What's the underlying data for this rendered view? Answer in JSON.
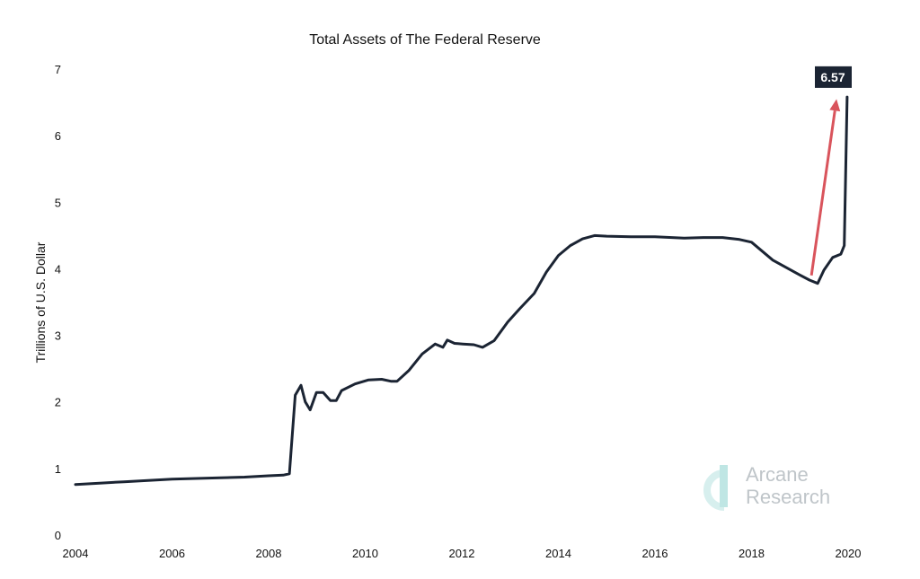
{
  "chart_data": {
    "type": "line",
    "title": "Total Assets of The Federal Reserve",
    "xlabel": "",
    "ylabel": "Trillions of U.S. Dollar",
    "xlim": [
      2004,
      2020
    ],
    "ylim": [
      0,
      7
    ],
    "x_ticks": [
      "2004",
      "2006",
      "2008",
      "2010",
      "2012",
      "2014",
      "2016",
      "2018",
      "2020"
    ],
    "y_ticks": [
      "0",
      "1",
      "2",
      "3",
      "4",
      "5",
      "6",
      "7"
    ],
    "grid": false,
    "line_color": "#1b2433",
    "series": [
      {
        "x": [
          2004,
          2004.5,
          2005,
          2005.5,
          2006,
          2006.5,
          2007,
          2007.5,
          2008,
          2008.3,
          2008.43,
          2008.55,
          2008.67,
          2008.76,
          2008.86,
          2008.99,
          2009.13,
          2009.28,
          2009.4,
          2009.51,
          2009.79,
          2010.07,
          2010.34,
          2010.53,
          2010.66,
          2010.9,
          2011.18,
          2011.45,
          2011.61,
          2011.7,
          2011.85,
          2012.02,
          2012.25,
          2012.43,
          2012.67,
          2012.95,
          2013.2,
          2013.5,
          2013.75,
          2014,
          2014.25,
          2014.5,
          2014.75,
          2015,
          2015.5,
          2016,
          2016.6,
          2017,
          2017.4,
          2017.75,
          2018,
          2018.44,
          2018.94,
          2019.2,
          2019.37,
          2019.5,
          2019.68,
          2019.85,
          2019.92,
          2019.98
        ],
        "y": [
          0.76,
          0.78,
          0.8,
          0.82,
          0.84,
          0.85,
          0.86,
          0.87,
          0.89,
          0.9,
          0.92,
          2.1,
          2.25,
          2.0,
          1.88,
          2.14,
          2.14,
          2.02,
          2.02,
          2.17,
          2.27,
          2.33,
          2.34,
          2.31,
          2.31,
          2.47,
          2.72,
          2.87,
          2.82,
          2.93,
          2.88,
          2.87,
          2.86,
          2.82,
          2.92,
          3.2,
          3.4,
          3.63,
          3.95,
          4.2,
          4.35,
          4.45,
          4.5,
          4.49,
          4.48,
          4.48,
          4.46,
          4.47,
          4.47,
          4.44,
          4.4,
          4.13,
          3.93,
          3.83,
          3.78,
          3.98,
          4.17,
          4.22,
          4.35,
          6.58
        ]
      }
    ],
    "annotations": [
      {
        "type": "label",
        "text": "6.57",
        "x": 2020,
        "y": 6.57,
        "background": "#1b2433"
      },
      {
        "type": "arrow",
        "from": [
          2019.24,
          3.9
        ],
        "to": [
          2019.76,
          6.55
        ],
        "color": "#d9545c"
      }
    ],
    "watermark": "Arcane Research"
  }
}
